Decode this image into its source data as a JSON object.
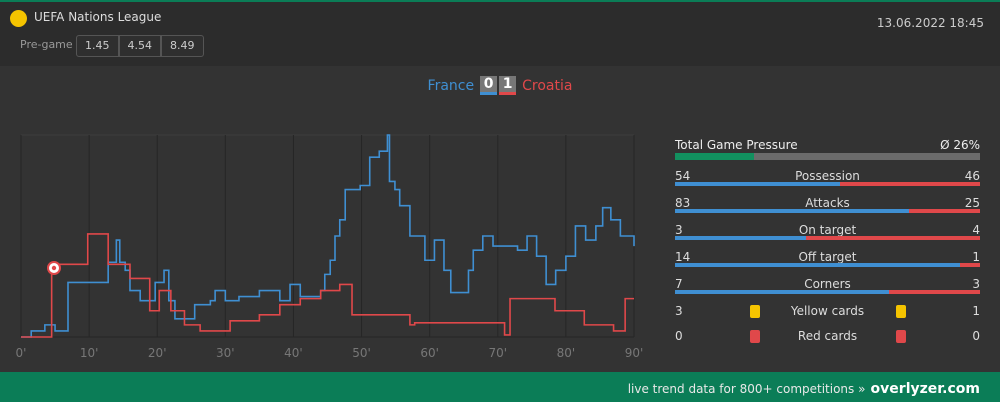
{
  "header": {
    "competition": "UEFA Nations League",
    "datetime": "13.06.2022 18:45",
    "pregame_label": "Pre-game",
    "odds": [
      "1.45",
      "4.54",
      "8.49"
    ]
  },
  "score": {
    "home": "France",
    "home_goals": "0",
    "away_goals": "1",
    "away": "Croatia"
  },
  "chart_data": {
    "type": "line",
    "xlim": [
      0,
      90
    ],
    "ylim": [
      0,
      100
    ],
    "xticks": [
      {
        "value": 0,
        "label": "0'"
      },
      {
        "value": 10,
        "label": "10'"
      },
      {
        "value": 20,
        "label": "20'"
      },
      {
        "value": 30,
        "label": "30'"
      },
      {
        "value": 40,
        "label": "40'"
      },
      {
        "value": 50,
        "label": "50'"
      },
      {
        "value": 60,
        "label": "60'"
      },
      {
        "value": 70,
        "label": "70'"
      },
      {
        "value": 80,
        "label": "80'"
      },
      {
        "value": 90,
        "label": "90'"
      }
    ],
    "grid": true,
    "step": true,
    "series": [
      {
        "name": "France",
        "color": "#3f8fd2",
        "x": [
          0,
          1.5,
          3.5,
          5,
          6.9,
          12.8,
          14,
          14.5,
          15.3,
          16,
          17.5,
          19.7,
          21,
          21.7,
          22.6,
          24.8,
          25.5,
          27.8,
          28.5,
          30,
          32,
          35,
          38,
          39.5,
          41,
          44,
          44.6,
          45.4,
          46.1,
          46.8,
          47.6,
          49.8,
          51.2,
          52.6,
          53.8,
          54.1,
          54.9,
          55.6,
          57.1,
          59.3,
          60.7,
          62.1,
          63.1,
          65.7,
          66.4,
          67.8,
          69.3,
          71.5,
          72.9,
          74.3,
          75.7,
          77.1,
          78.5,
          80,
          81.4,
          82.9,
          84.4,
          85.4,
          86.6,
          88,
          90
        ],
        "values": [
          0,
          3,
          6,
          3,
          27,
          37,
          48,
          37,
          33,
          23,
          18,
          27,
          33,
          18,
          9,
          9,
          16,
          18,
          23,
          18,
          20,
          23,
          18,
          26,
          20,
          23,
          31,
          38,
          50,
          58,
          73,
          75,
          89,
          92,
          100,
          77,
          73,
          65,
          50,
          38,
          48,
          33,
          22,
          33,
          43,
          50,
          45,
          45,
          43,
          50,
          40,
          26,
          33,
          40,
          55,
          48,
          55,
          64,
          58,
          50,
          45
        ]
      },
      {
        "name": "Croatia",
        "color": "#e0484a",
        "x": [
          0,
          4.5,
          7.2,
          9.8,
          12.8,
          16,
          18.9,
          20.3,
          22,
          24,
          26.3,
          30.7,
          32.9,
          35,
          38,
          41,
          44,
          46.8,
          48.6,
          57.1,
          57.8,
          71,
          71.8,
          78.4,
          82.7,
          87,
          88.7,
          90
        ],
        "values": [
          0,
          36,
          36,
          51,
          36,
          29,
          13,
          23,
          13,
          6,
          3,
          8,
          8,
          11,
          16,
          19,
          23,
          26,
          11,
          6,
          7,
          1,
          19,
          13,
          6,
          3,
          19,
          19
        ]
      }
    ]
  },
  "stats": {
    "pressure": {
      "label": "Total Game Pressure",
      "value": 26,
      "value_label": "Ø 26%"
    },
    "rows": [
      {
        "name": "Possession",
        "home": 54,
        "away": 46
      },
      {
        "name": "Attacks",
        "home": 83,
        "away": 25
      },
      {
        "name": "On target",
        "home": 3,
        "away": 4
      },
      {
        "name": "Off target",
        "home": 14,
        "away": 1
      },
      {
        "name": "Corners",
        "home": 7,
        "away": 3
      },
      {
        "name": "Yellow cards",
        "home": 3,
        "away": 1
      },
      {
        "name": "Red cards",
        "home": 0,
        "away": 0
      }
    ]
  },
  "footer": {
    "text": "live trend data for 800+ competitions »",
    "brand": "overlyzer.com"
  }
}
